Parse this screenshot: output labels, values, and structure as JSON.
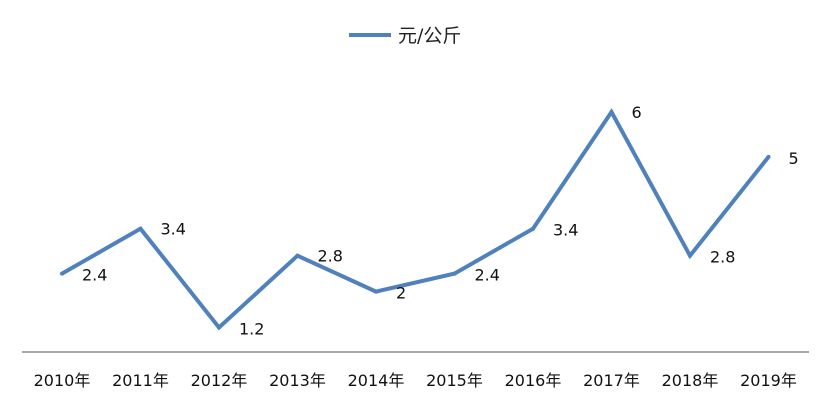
{
  "chart_data": {
    "type": "line",
    "categories": [
      "2010年",
      "2011年",
      "2012年",
      "2013年",
      "2014年",
      "2015年",
      "2016年",
      "2017年",
      "2018年",
      "2019年"
    ],
    "series": [
      {
        "name": "元/公斤",
        "values": [
          2.4,
          3.4,
          1.2,
          2.8,
          2,
          2.4,
          3.4,
          6,
          2.8,
          5
        ],
        "color": "#4F81BD"
      }
    ],
    "data_labels": [
      "2.4",
      "3.4",
      "1.2",
      "2.8",
      "2",
      "2.4",
      "3.4",
      "6",
      "2.8",
      "5"
    ],
    "legend_position": "top-center",
    "grid": false,
    "ylim": [
      0,
      7
    ],
    "axis_color": "#8C8C8C"
  }
}
